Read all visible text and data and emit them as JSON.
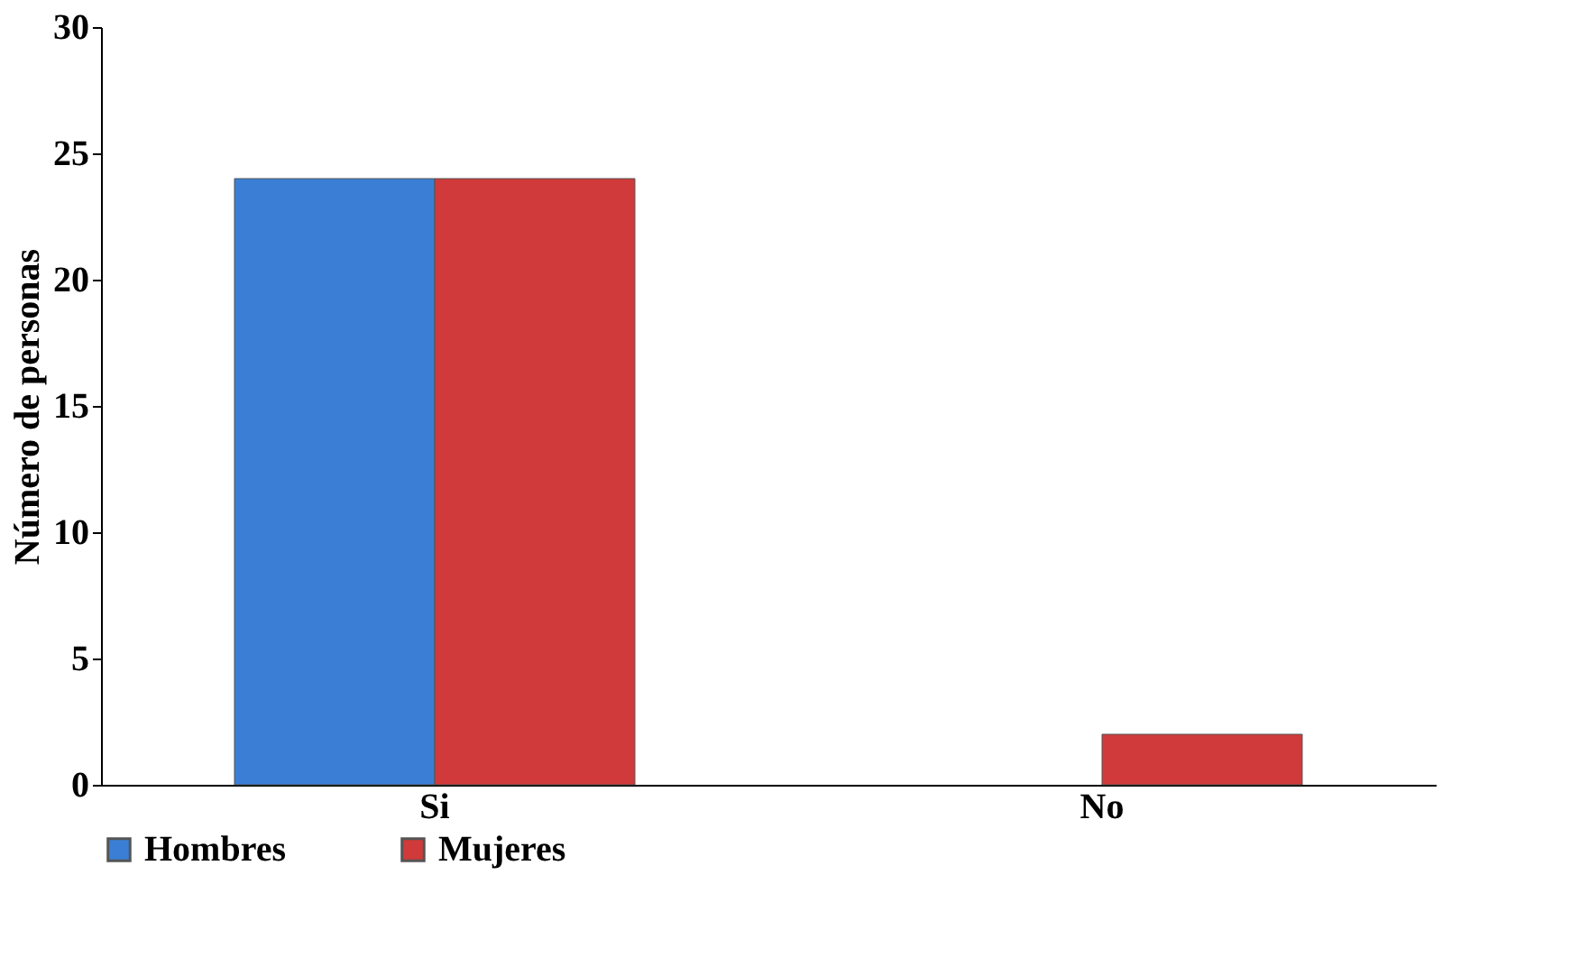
{
  "chart_data": {
    "type": "bar",
    "ylabel": "Número de personas",
    "categories": [
      "Si",
      "No"
    ],
    "series": [
      {
        "name": "Hombres",
        "color": "#3a7fd5",
        "values": [
          24,
          null
        ]
      },
      {
        "name": "Mujeres",
        "color": "#d03a3a",
        "values": [
          24,
          2
        ]
      }
    ],
    "ylim": [
      0,
      30
    ],
    "yticks": [
      0,
      5,
      10,
      15,
      20,
      25,
      30
    ],
    "grid": false,
    "legend": "bottom"
  }
}
